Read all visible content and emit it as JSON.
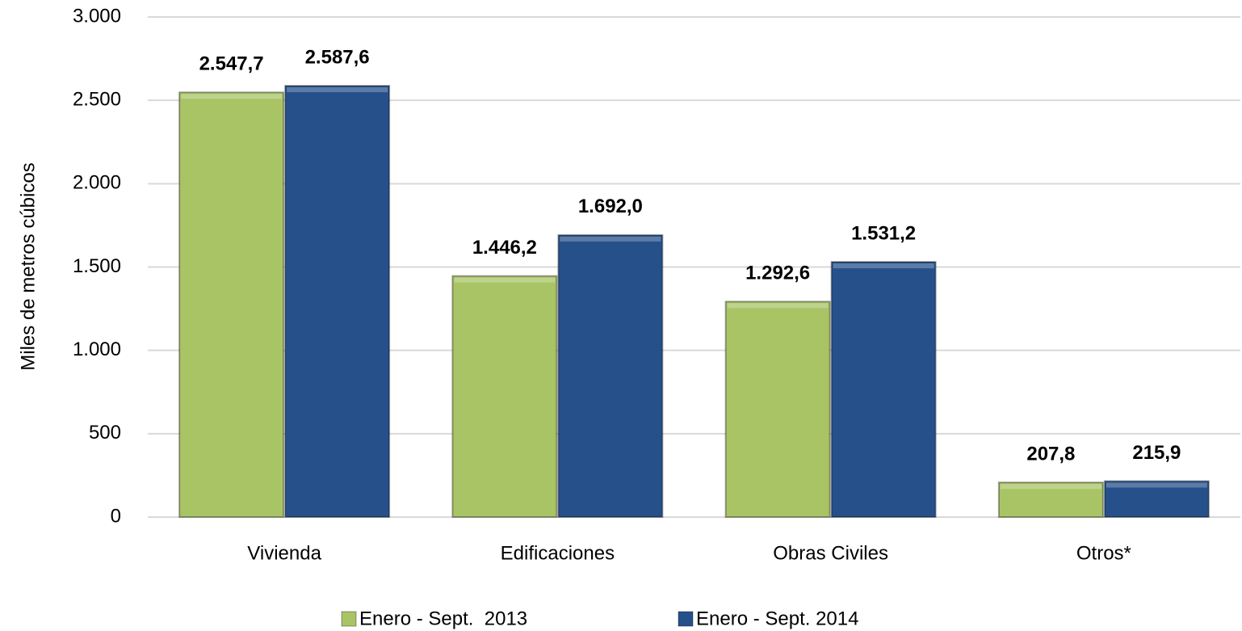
{
  "chart_data": {
    "type": "bar",
    "y_axis_label": "Miles de metros cúbicos",
    "categories": [
      "Vivienda",
      "Edificaciones",
      "Obras Civiles",
      "Otros*"
    ],
    "series": [
      {
        "name": "Enero - Sept.  2013",
        "color": "#a9c465",
        "label_color": "#808080",
        "values": [
          2547.7,
          1446.2,
          1292.6,
          207.8
        ],
        "value_labels": [
          "2.547,7",
          "1.446,2",
          "1.292,6",
          "207,8"
        ]
      },
      {
        "name": "Enero - Sept. 2014",
        "color": "#26508a",
        "label_color": "#1f497d",
        "values": [
          2587.6,
          1692.0,
          1531.2,
          215.9
        ],
        "value_labels": [
          "2.587,6",
          "1.692,0",
          "1.531,2",
          "215,9"
        ]
      }
    ],
    "ylim": [
      0,
      3000
    ],
    "yticks": [
      0,
      500,
      {
        "value": 1000,
        "label": "1.000"
      },
      {
        "value": 1500,
        "label": "1.500"
      },
      {
        "value": 2000,
        "label": "2.000"
      },
      {
        "value": 2500,
        "label": "2.500"
      },
      {
        "value": 3000,
        "label": "3.000"
      }
    ],
    "grid": true,
    "legend": "bottom"
  }
}
